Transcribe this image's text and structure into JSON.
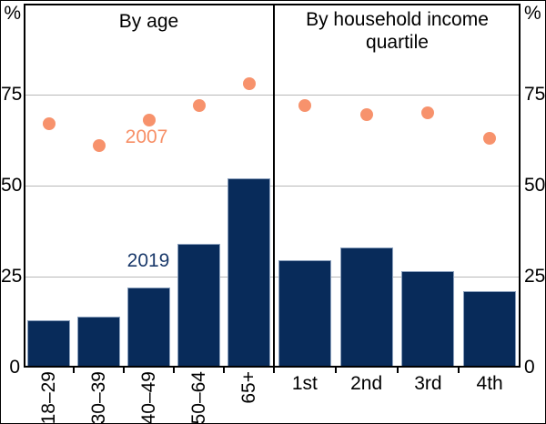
{
  "figure": {
    "unit_left": "%",
    "unit_right": "%",
    "colors": {
      "bar": "#082b5a",
      "bar_outline": "#8ba0bd",
      "dot": "#f7926c",
      "grid": "#b8b8b8",
      "frame": "#000000",
      "label_2019": "#1b3a6b",
      "label_2007": "#f78f66",
      "text": "#000000"
    }
  },
  "chart_data": [
    {
      "type": "bar",
      "title": "By age",
      "categories": [
        "18–29",
        "30–39",
        "40–49",
        "50–64",
        "65+"
      ],
      "series": [
        {
          "name": "2019",
          "type": "bar",
          "values": [
            13,
            14,
            22,
            34,
            52
          ]
        },
        {
          "name": "2007",
          "type": "scatter",
          "values": [
            67,
            61,
            68,
            72,
            78
          ]
        }
      ],
      "ylim": [
        0,
        100
      ],
      "yticks": [
        0,
        25,
        50,
        75
      ],
      "x_tick_rotation_deg": -90,
      "annotations": [
        {
          "text": "2019",
          "series": "2019"
        },
        {
          "text": "2007",
          "series": "2007"
        }
      ]
    },
    {
      "type": "bar",
      "title": "By household income quartile",
      "categories": [
        "1st",
        "2nd",
        "3rd",
        "4th"
      ],
      "series": [
        {
          "name": "2019",
          "type": "bar",
          "values": [
            29.5,
            33,
            26.5,
            21
          ]
        },
        {
          "name": "2007",
          "type": "scatter",
          "values": [
            72,
            69.5,
            70,
            63
          ]
        }
      ],
      "ylim": [
        0,
        100
      ],
      "yticks": [
        0,
        25,
        50,
        75
      ],
      "x_tick_rotation_deg": 0,
      "annotations": []
    }
  ]
}
